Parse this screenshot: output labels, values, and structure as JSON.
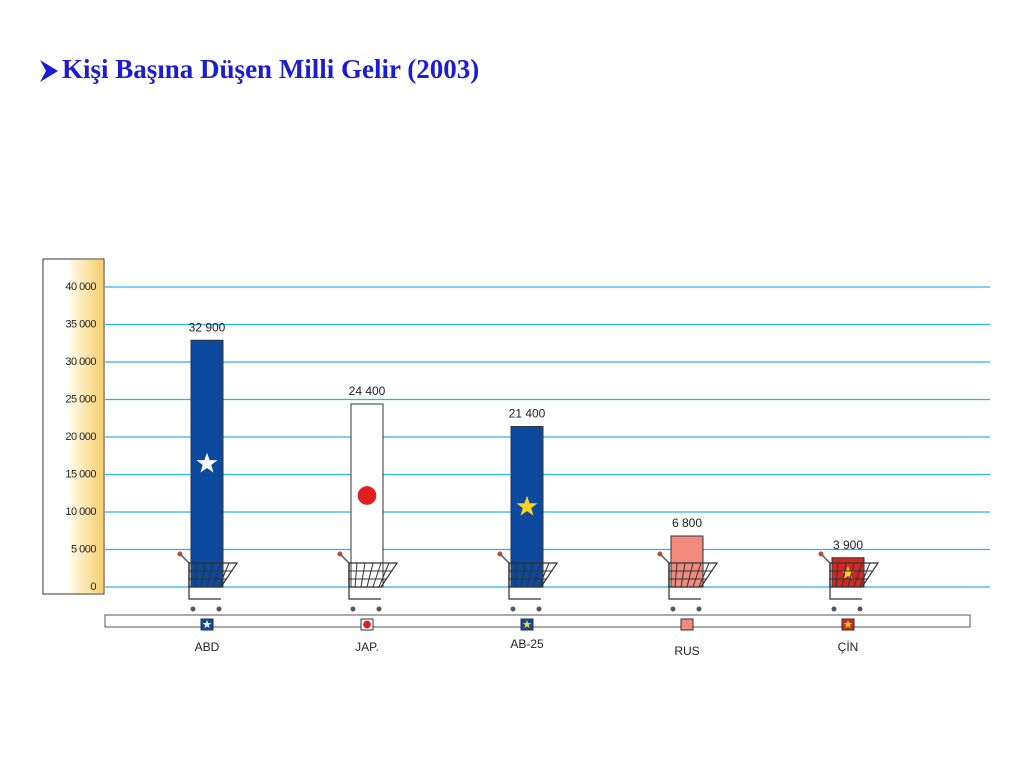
{
  "chart_data": {
    "type": "bar",
    "title": "Kişi Başına Düşen Milli Gelir (2003)",
    "categories": [
      "ABD",
      "JAP.",
      "AB-25",
      "RUS",
      "ÇİN"
    ],
    "values": [
      32900,
      24400,
      21400,
      6800,
      3900
    ],
    "value_labels": [
      "32 900",
      "24 400",
      "21 400",
      "6 800",
      "3 900"
    ],
    "colors": [
      "#0b4a9e",
      "#ffffff",
      "#0b4a9e",
      "#f28b7d",
      "#cc2a22"
    ],
    "ylim": [
      0,
      40000
    ],
    "yticks": [
      0,
      {
        "value": 5000,
        "label": "5 000"
      },
      {
        "value": 10000,
        "label": "10 000"
      },
      {
        "value": 15000,
        "label": "15 000"
      },
      {
        "value": 20000,
        "label": "20 000"
      },
      {
        "value": 25000,
        "label": "25 000"
      },
      {
        "value": 30000,
        "label": "30 000"
      },
      {
        "value": 35000,
        "label": "35 000"
      },
      {
        "value": 40000,
        "label": "40 000"
      }
    ],
    "grid": true
  }
}
